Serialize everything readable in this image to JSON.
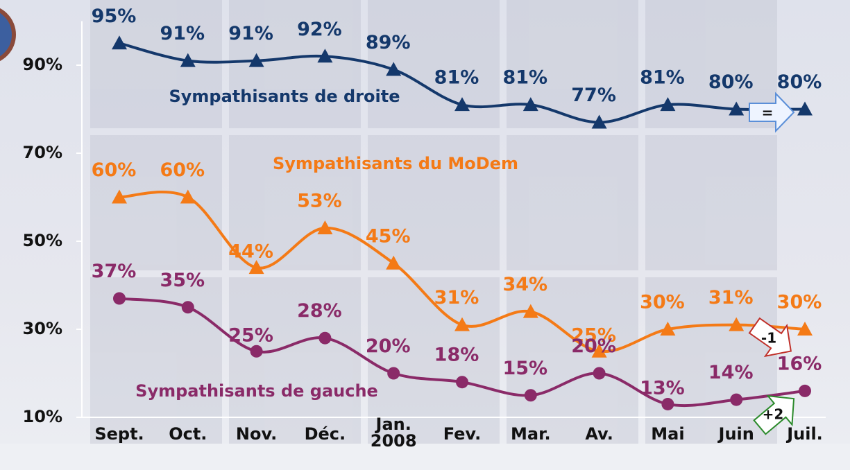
{
  "chart_data": {
    "type": "line",
    "categories": [
      "Sept.",
      "Oct.",
      "Nov.",
      "Déc.",
      "Jan.\n2008",
      "Fev.",
      "Mar.",
      "Av.",
      "Mai",
      "Juin",
      "Juil."
    ],
    "ylim": [
      10,
      100
    ],
    "yticks": [
      {
        "value": 10,
        "label": "10%"
      },
      {
        "value": 30,
        "label": "30%"
      },
      {
        "value": 50,
        "label": "50%"
      },
      {
        "value": 70,
        "label": "70%"
      },
      {
        "value": 90,
        "label": "90%"
      }
    ],
    "series": [
      {
        "name": "Sympathisants de droite",
        "color": "#14386b",
        "marker": "triangle",
        "change_label": "=",
        "values": [
          95,
          91,
          91,
          92,
          89,
          81,
          81,
          77,
          81,
          80,
          80
        ],
        "value_labels": [
          "95%",
          "91%",
          "91%",
          "92%",
          "89%",
          "81%",
          "81%",
          "77%",
          "81%",
          "80%",
          "80%"
        ]
      },
      {
        "name": "Sympathisants du MoDem",
        "color": "#f47a16",
        "marker": "triangle",
        "change_label": "-1",
        "values": [
          60,
          60,
          44,
          53,
          45,
          31,
          34,
          25,
          30,
          31,
          30
        ],
        "value_labels": [
          "60%",
          "60%",
          "44%",
          "53%",
          "45%",
          "31%",
          "34%",
          "25%",
          "30%",
          "31%",
          "30%"
        ]
      },
      {
        "name": "Sympathisants de gauche",
        "color": "#8a2a68",
        "marker": "circle",
        "change_label": "+2",
        "values": [
          37,
          35,
          25,
          28,
          20,
          18,
          15,
          20,
          13,
          14,
          16
        ],
        "value_labels": [
          "37%",
          "35%",
          "25%",
          "28%",
          "20%",
          "18%",
          "15%",
          "20%",
          "13%",
          "14%",
          "16%"
        ]
      }
    ]
  }
}
